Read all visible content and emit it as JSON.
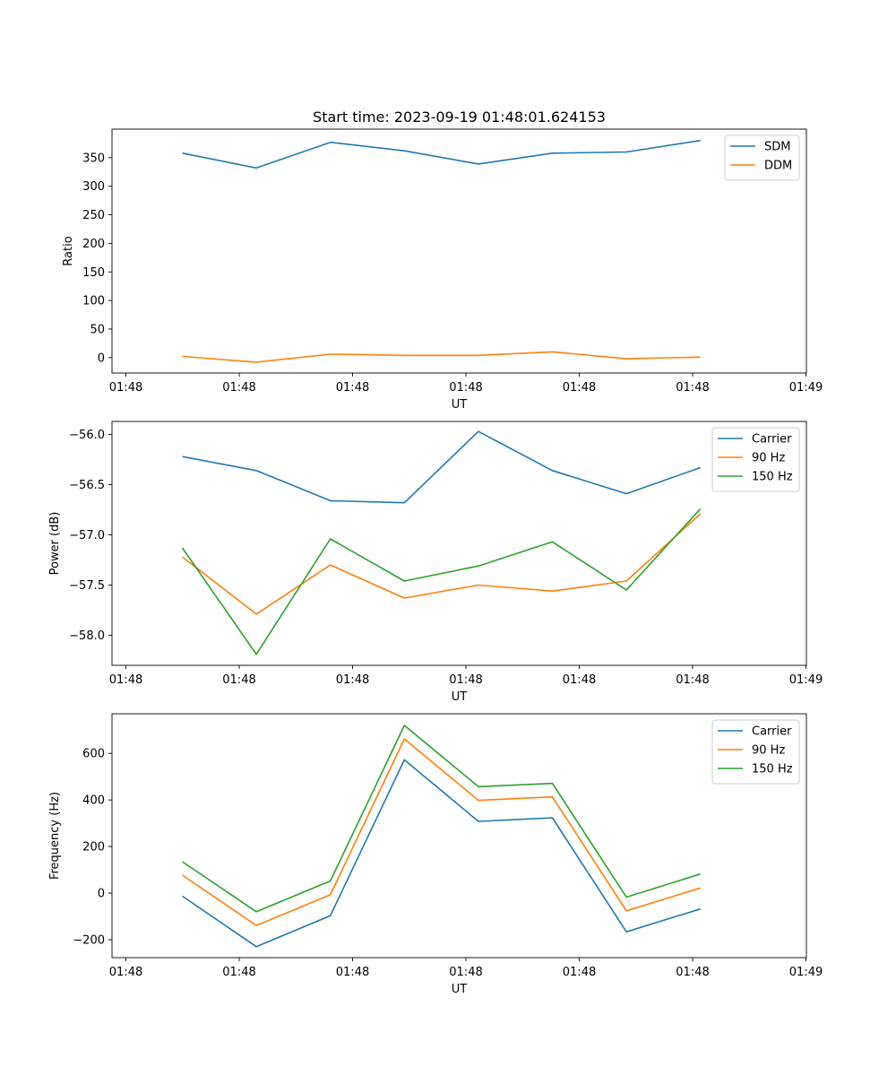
{
  "figure": {
    "title": "Start time: 2023-09-19 01:48:01.624153"
  },
  "chart_data": [
    {
      "type": "line",
      "xlabel": "UT",
      "ylabel": "Ratio",
      "xtick_labels": [
        "01:48",
        "01:48",
        "01:48",
        "01:48",
        "01:48",
        "01:48",
        "01:49"
      ],
      "ylim": [
        -27,
        400
      ],
      "yticks": [
        0,
        50,
        100,
        150,
        200,
        250,
        300,
        350
      ],
      "legend_position": "top-right",
      "x": [
        1,
        2,
        3,
        4,
        5,
        6,
        7,
        8
      ],
      "series": [
        {
          "name": "SDM",
          "color": "#1f77b4",
          "values": [
            358,
            332,
            377,
            362,
            339,
            358,
            360,
            380
          ]
        },
        {
          "name": "DDM",
          "color": "#ff7f0e",
          "values": [
            2,
            -8,
            6,
            4,
            4,
            10,
            -2,
            1
          ]
        }
      ]
    },
    {
      "type": "line",
      "xlabel": "UT",
      "ylabel": "Power (dB)",
      "xtick_labels": [
        "01:48",
        "01:48",
        "01:48",
        "01:48",
        "01:48",
        "01:48",
        "01:49"
      ],
      "ylim": [
        -58.3,
        -55.87
      ],
      "yticks": [
        -58.0,
        -57.5,
        -57.0,
        -56.5,
        -56.0
      ],
      "ytick_labels": [
        "−58.0",
        "−57.5",
        "−57.0",
        "−56.5",
        "−56.0"
      ],
      "legend_position": "top-right",
      "x": [
        1,
        2,
        3,
        4,
        5,
        6,
        7,
        8
      ],
      "series": [
        {
          "name": "Carrier",
          "color": "#1f77b4",
          "values": [
            -56.22,
            -56.36,
            -56.66,
            -56.68,
            -55.97,
            -56.36,
            -56.59,
            -56.33
          ]
        },
        {
          "name": "90 Hz",
          "color": "#ff7f0e",
          "values": [
            -57.22,
            -57.79,
            -57.3,
            -57.63,
            -57.5,
            -57.56,
            -57.46,
            -56.79
          ]
        },
        {
          "name": "150 Hz",
          "color": "#2ca02c",
          "values": [
            -57.13,
            -58.19,
            -57.04,
            -57.46,
            -57.31,
            -57.07,
            -57.55,
            -56.74
          ]
        }
      ]
    },
    {
      "type": "line",
      "xlabel": "UT",
      "ylabel": "Frequency (Hz)",
      "xtick_labels": [
        "01:48",
        "01:48",
        "01:48",
        "01:48",
        "01:48",
        "01:48",
        "01:49"
      ],
      "ylim": [
        -277,
        770
      ],
      "yticks": [
        -200,
        0,
        200,
        400,
        600
      ],
      "ytick_labels": [
        "−200",
        "0",
        "200",
        "400",
        "600"
      ],
      "legend_position": "top-right",
      "x": [
        1,
        2,
        3,
        4,
        5,
        6,
        7,
        8
      ],
      "series": [
        {
          "name": "Carrier",
          "color": "#1f77b4",
          "values": [
            -13,
            -230,
            -97,
            572,
            308,
            323,
            -166,
            -68
          ]
        },
        {
          "name": "90 Hz",
          "color": "#ff7f0e",
          "values": [
            77,
            -139,
            -7,
            662,
            398,
            413,
            -76,
            22
          ]
        },
        {
          "name": "150 Hz",
          "color": "#2ca02c",
          "values": [
            135,
            -80,
            52,
            720,
            457,
            471,
            -17,
            82
          ]
        }
      ]
    }
  ]
}
